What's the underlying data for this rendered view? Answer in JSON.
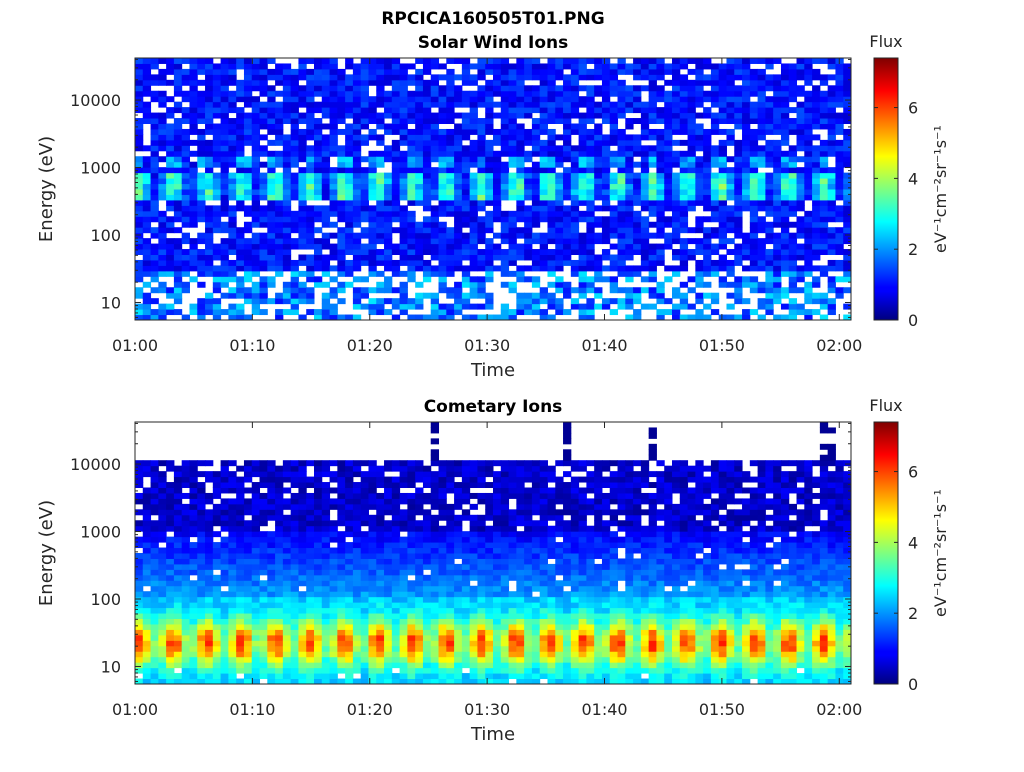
{
  "figure": {
    "filename": "RPCICA160505T01.PNG"
  },
  "chart_data": [
    {
      "type": "heatmap",
      "title": "Solar Wind Ions",
      "xlabel": "Time",
      "ylabel": "Energy (eV)",
      "x_ticks": [
        "01:00",
        "01:10",
        "01:20",
        "01:30",
        "01:40",
        "01:50",
        "02:00"
      ],
      "xlim": [
        "01:00",
        "02:01"
      ],
      "y_scale": "log",
      "y_ticks": [
        10,
        100,
        1000,
        10000
      ],
      "y_tick_labels": [
        "10",
        "100",
        "1000",
        "10000"
      ],
      "ylim": [
        5.5,
        42000
      ],
      "colorbar": {
        "title": "Flux",
        "units": "eV⁻¹cm⁻²sr⁻¹s⁻¹",
        "range": [
          0,
          7.4
        ],
        "ticks": [
          0,
          2,
          4,
          6
        ],
        "tick_labels": [
          "0",
          "2",
          "4",
          "6"
        ],
        "colormap": "jet"
      },
      "features": [
        {
          "energy_range_eV": [
            30,
            42000
          ],
          "typical_value": 1.0,
          "description": "low background across energies with sparse gaps"
        },
        {
          "energy_range_eV": [
            350,
            800
          ],
          "typical_value": 3.3,
          "description": "periodic solar wind proton beam near 500 eV"
        },
        {
          "energy_range_eV": [
            1100,
            1500
          ],
          "typical_value": 2.2,
          "description": "weaker periodic alpha band"
        },
        {
          "energy_range_eV": [
            5.5,
            30
          ],
          "typical_value": 1.6,
          "description": "patchy low-energy flux with many gaps"
        }
      ]
    },
    {
      "type": "heatmap",
      "title": "Cometary Ions",
      "xlabel": "Time",
      "ylabel": "Energy (eV)",
      "x_ticks": [
        "01:00",
        "01:10",
        "01:20",
        "01:30",
        "01:40",
        "01:50",
        "02:00"
      ],
      "xlim": [
        "01:00",
        "02:01"
      ],
      "y_scale": "log",
      "y_ticks": [
        10,
        100,
        1000,
        10000
      ],
      "y_tick_labels": [
        "10",
        "100",
        "1000",
        "10000"
      ],
      "ylim": [
        5.5,
        42000
      ],
      "colorbar": {
        "title": "Flux",
        "units": "eV⁻¹cm⁻²sr⁻¹s⁻¹",
        "range": [
          0,
          7.4
        ],
        "ticks": [
          0,
          2,
          4,
          6
        ],
        "tick_labels": [
          "0",
          "2",
          "4",
          "6"
        ],
        "colormap": "jet"
      },
      "features": [
        {
          "energy_range_eV": [
            11000,
            42000
          ],
          "typical_value": null,
          "description": "no data above ~11 keV except sparse spikes at ~01:25, 01:37, 01:44, 01:59"
        },
        {
          "energy_range_eV": [
            1000,
            11000
          ],
          "typical_value": 0.6,
          "description": "low flux with scattered gaps"
        },
        {
          "energy_range_eV": [
            100,
            1000
          ],
          "typical_value": 1.4,
          "description": "rising flux toward lower energies"
        },
        {
          "energy_range_eV": [
            5.5,
            60
          ],
          "typical_value": 3.8,
          "description": "intense periodic cometary ion flux peaking near 20 eV"
        }
      ]
    }
  ]
}
